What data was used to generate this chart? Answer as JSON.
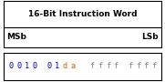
{
  "title": "16-Bit Instruction Word",
  "msb_label": "MSb",
  "lsb_label": "LSb",
  "hex_text": "0010   01da    ffff    ffff",
  "hex_segments": [
    "0010",
    "01da",
    "ffff",
    "ffff"
  ],
  "char_colors": {
    "0": "#0000cc",
    "1": "#0000cc",
    "2": "#0000cc",
    "d": "#cc6600",
    "a": "#cc6600",
    "f": "#888888"
  },
  "bg_color": "#ffffff",
  "border_color": "#000000",
  "title_fontsize": 6.5,
  "label_fontsize": 6.5,
  "hex_fontsize": 6.2,
  "fig_width": 1.81,
  "fig_height": 0.9,
  "fig_dpi": 100
}
